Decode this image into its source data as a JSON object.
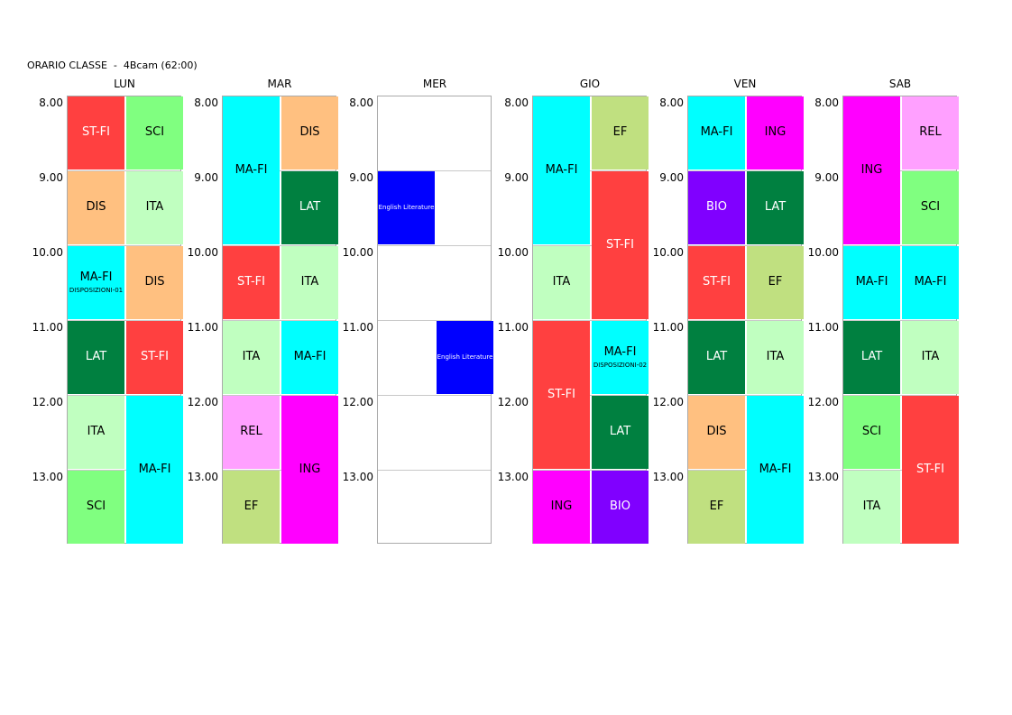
{
  "header": "ORARIO CLASSE  -  4Bcam (62:00)",
  "times": [
    "8.00",
    "9.00",
    "10.00",
    "11.00",
    "12.00",
    "13.00"
  ],
  "colors": {
    "ST-FI": "#ff4040",
    "SCI": "#80ff80",
    "DIS": "#ffc080",
    "ITA": "#c0ffc0",
    "MA-FI": "#00ffff",
    "LAT": "#008040",
    "ING": "#ff00ff",
    "REL": "#ffa0ff",
    "EF": "#c0e080",
    "BIO": "#8000ff",
    "English Literature": "#0000ff"
  },
  "lightText": [
    "ST-FI",
    "LAT",
    "BIO",
    "English Literature"
  ],
  "days": [
    {
      "name": "LUN",
      "blocks": [
        {
          "label": "ST-FI",
          "col": 0,
          "start": 0,
          "span": 1
        },
        {
          "label": "SCI",
          "col": 1,
          "start": 0,
          "span": 1
        },
        {
          "label": "DIS",
          "col": 0,
          "start": 1,
          "span": 1
        },
        {
          "label": "ITA",
          "col": 1,
          "start": 1,
          "span": 1
        },
        {
          "label": "MA-FI",
          "sub": "DISPOSIZIONI-01",
          "col": 0,
          "start": 2,
          "span": 1
        },
        {
          "label": "DIS",
          "col": 1,
          "start": 2,
          "span": 1
        },
        {
          "label": "LAT",
          "col": 0,
          "start": 3,
          "span": 1
        },
        {
          "label": "ST-FI",
          "col": 1,
          "start": 3,
          "span": 1
        },
        {
          "label": "ITA",
          "col": 0,
          "start": 4,
          "span": 1
        },
        {
          "label": "MA-FI",
          "col": 1,
          "start": 4,
          "span": 2
        },
        {
          "label": "SCI",
          "col": 0,
          "start": 5,
          "span": 1
        }
      ]
    },
    {
      "name": "MAR",
      "blocks": [
        {
          "label": "MA-FI",
          "col": 0,
          "start": 0,
          "span": 2
        },
        {
          "label": "DIS",
          "col": 1,
          "start": 0,
          "span": 1
        },
        {
          "label": "LAT",
          "col": 1,
          "start": 1,
          "span": 1
        },
        {
          "label": "ST-FI",
          "col": 0,
          "start": 2,
          "span": 1
        },
        {
          "label": "ITA",
          "col": 1,
          "start": 2,
          "span": 1
        },
        {
          "label": "ITA",
          "col": 0,
          "start": 3,
          "span": 1
        },
        {
          "label": "MA-FI",
          "col": 1,
          "start": 3,
          "span": 1
        },
        {
          "label": "REL",
          "col": 0,
          "start": 4,
          "span": 1
        },
        {
          "label": "ING",
          "col": 1,
          "start": 4,
          "span": 2
        },
        {
          "label": "EF",
          "col": 0,
          "start": 5,
          "span": 1
        }
      ]
    },
    {
      "name": "MER",
      "blocks": [
        {
          "label": "English Literature",
          "col": 0,
          "start": 1,
          "span": 1,
          "small": true
        },
        {
          "label": "English Literature",
          "col": 1,
          "start": 3,
          "span": 1,
          "small": true
        }
      ]
    },
    {
      "name": "GIO",
      "blocks": [
        {
          "label": "MA-FI",
          "col": 0,
          "start": 0,
          "span": 2
        },
        {
          "label": "EF",
          "col": 1,
          "start": 0,
          "span": 1
        },
        {
          "label": "ST-FI",
          "col": 1,
          "start": 1,
          "span": 2
        },
        {
          "label": "ITA",
          "col": 0,
          "start": 2,
          "span": 1
        },
        {
          "label": "ST-FI",
          "col": 0,
          "start": 3,
          "span": 2
        },
        {
          "label": "MA-FI",
          "sub": "DISPOSIZIONI-02",
          "col": 1,
          "start": 3,
          "span": 1
        },
        {
          "label": "LAT",
          "col": 1,
          "start": 4,
          "span": 1
        },
        {
          "label": "ING",
          "col": 0,
          "start": 5,
          "span": 1
        },
        {
          "label": "BIO",
          "col": 1,
          "start": 5,
          "span": 1
        }
      ]
    },
    {
      "name": "VEN",
      "blocks": [
        {
          "label": "MA-FI",
          "col": 0,
          "start": 0,
          "span": 1
        },
        {
          "label": "ING",
          "col": 1,
          "start": 0,
          "span": 1
        },
        {
          "label": "BIO",
          "col": 0,
          "start": 1,
          "span": 1
        },
        {
          "label": "LAT",
          "col": 1,
          "start": 1,
          "span": 1
        },
        {
          "label": "ST-FI",
          "col": 0,
          "start": 2,
          "span": 1
        },
        {
          "label": "EF",
          "col": 1,
          "start": 2,
          "span": 1
        },
        {
          "label": "LAT",
          "col": 0,
          "start": 3,
          "span": 1
        },
        {
          "label": "ITA",
          "col": 1,
          "start": 3,
          "span": 1
        },
        {
          "label": "DIS",
          "col": 0,
          "start": 4,
          "span": 1
        },
        {
          "label": "MA-FI",
          "col": 1,
          "start": 4,
          "span": 2
        },
        {
          "label": "EF",
          "col": 0,
          "start": 5,
          "span": 1
        }
      ]
    },
    {
      "name": "SAB",
      "blocks": [
        {
          "label": "ING",
          "col": 0,
          "start": 0,
          "span": 2
        },
        {
          "label": "REL",
          "col": 1,
          "start": 0,
          "span": 1
        },
        {
          "label": "SCI",
          "col": 1,
          "start": 1,
          "span": 1
        },
        {
          "label": "MA-FI",
          "col": 0,
          "start": 2,
          "span": 1
        },
        {
          "label": "MA-FI",
          "col": 1,
          "start": 2,
          "span": 1
        },
        {
          "label": "LAT",
          "col": 0,
          "start": 3,
          "span": 1
        },
        {
          "label": "ITA",
          "col": 1,
          "start": 3,
          "span": 1
        },
        {
          "label": "SCI",
          "col": 0,
          "start": 4,
          "span": 1
        },
        {
          "label": "ST-FI",
          "col": 1,
          "start": 4,
          "span": 2
        },
        {
          "label": "ITA",
          "col": 0,
          "start": 5,
          "span": 1
        }
      ]
    }
  ]
}
